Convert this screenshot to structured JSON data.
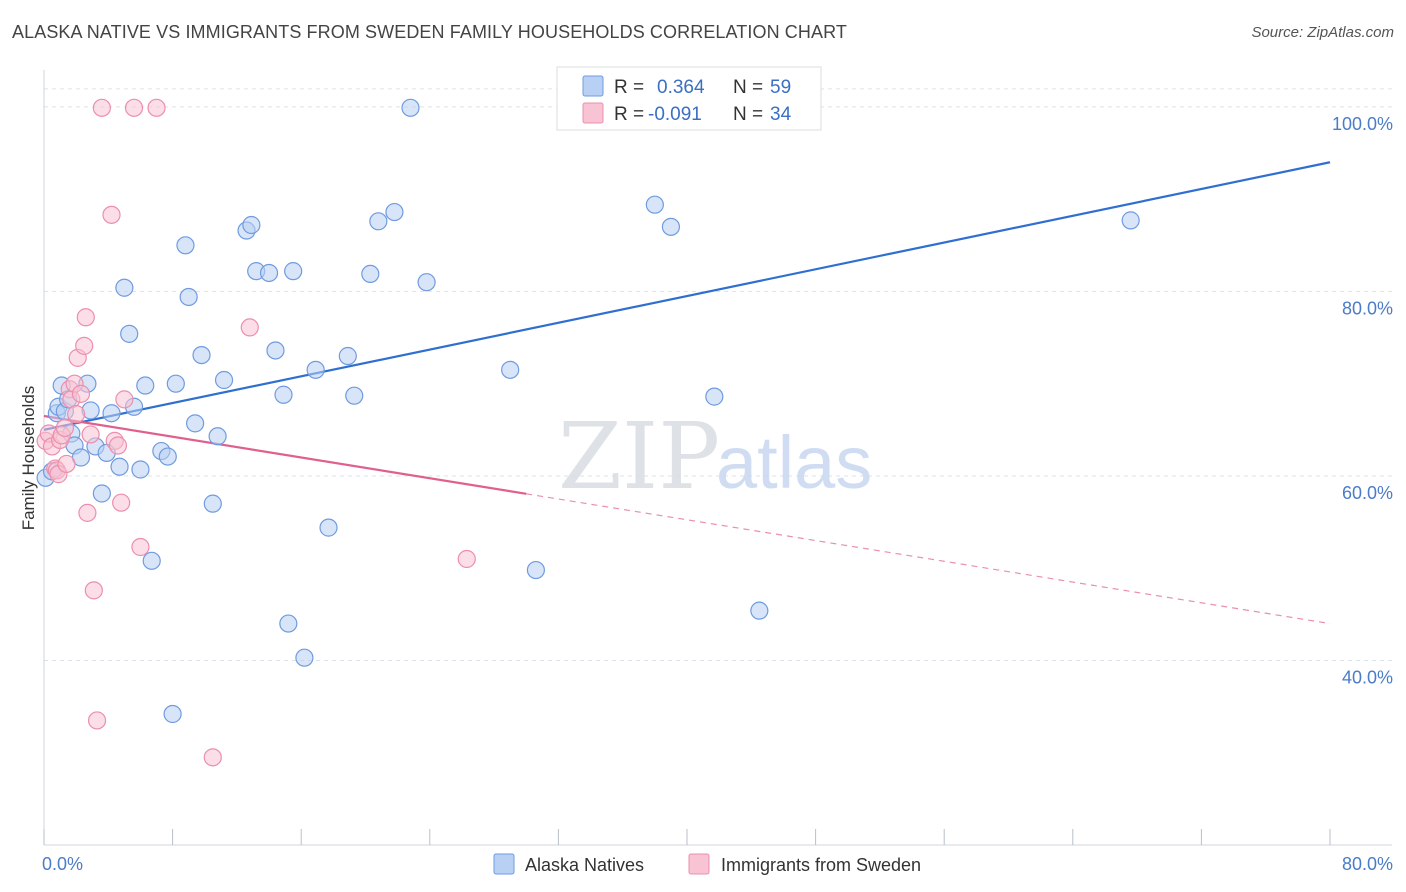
{
  "title": "ALASKA NATIVE VS IMMIGRANTS FROM SWEDEN FAMILY HOUSEHOLDS CORRELATION CHART",
  "source": "Source: ZipAtlas.com",
  "watermark": {
    "zip": "ZIP",
    "atlas": "atlas"
  },
  "colors": {
    "blue_fill": "#b8d0f3",
    "blue_stroke": "#6f9be0",
    "blue_line": "#2f6fd0",
    "pink_fill": "#f8c3d3",
    "pink_stroke": "#ec8fac",
    "pink_line": "#e0608d",
    "grid": "#dde3ea",
    "tick_text": "#4a7cc7"
  },
  "legend_box": {
    "rows": [
      {
        "r_label": "R =",
        "r_value": "0.364",
        "n_label": "N =",
        "n_value": "59"
      },
      {
        "r_label": "R =",
        "r_value": "-0.091",
        "n_label": "N =",
        "n_value": "34"
      }
    ]
  },
  "chart_data": {
    "type": "scatter",
    "title": "ALASKA NATIVE VS IMMIGRANTS FROM SWEDEN FAMILY HOUSEHOLDS CORRELATION CHART",
    "xlabel": "",
    "ylabel": "Family Households",
    "xlim": [
      0,
      80
    ],
    "ylim": [
      20,
      104
    ],
    "x_tick_labels": [
      "0.0%",
      "80.0%"
    ],
    "y_ticks": [
      40,
      60,
      80,
      100
    ],
    "y_tick_labels": [
      "40.0%",
      "60.0%",
      "80.0%",
      "100.0%"
    ],
    "grid": true,
    "legend_position": "bottom",
    "series": [
      {
        "name": "Alaska Natives",
        "r": 0.364,
        "n": 59,
        "trend": {
          "x": [
            0,
            80
          ],
          "y": [
            65.0,
            94.0
          ],
          "solid_to": 80
        },
        "points": [
          [
            0.1,
            59.8
          ],
          [
            0.5,
            60.5
          ],
          [
            0.8,
            66.8
          ],
          [
            0.9,
            67.5
          ],
          [
            1.1,
            69.8
          ],
          [
            1.3,
            67.0
          ],
          [
            1.5,
            68.3
          ],
          [
            1.7,
            64.6
          ],
          [
            1.9,
            63.3
          ],
          [
            2.3,
            62.0
          ],
          [
            2.7,
            70.0
          ],
          [
            2.9,
            67.1
          ],
          [
            3.2,
            63.2
          ],
          [
            3.6,
            58.1
          ],
          [
            3.9,
            62.5
          ],
          [
            4.2,
            66.8
          ],
          [
            4.7,
            61.0
          ],
          [
            5.0,
            80.4
          ],
          [
            5.3,
            75.4
          ],
          [
            5.6,
            67.5
          ],
          [
            6.0,
            60.7
          ],
          [
            6.3,
            69.8
          ],
          [
            6.7,
            50.8
          ],
          [
            7.3,
            62.7
          ],
          [
            7.7,
            62.1
          ],
          [
            8.0,
            34.2
          ],
          [
            8.2,
            70.0
          ],
          [
            8.8,
            85.0
          ],
          [
            9.0,
            79.4
          ],
          [
            9.4,
            65.7
          ],
          [
            9.8,
            73.1
          ],
          [
            10.5,
            57.0
          ],
          [
            10.8,
            64.3
          ],
          [
            11.2,
            70.4
          ],
          [
            12.6,
            86.6
          ],
          [
            12.9,
            87.2
          ],
          [
            13.2,
            82.2
          ],
          [
            14.0,
            82.0
          ],
          [
            14.4,
            73.6
          ],
          [
            14.9,
            68.8
          ],
          [
            15.2,
            44.0
          ],
          [
            15.5,
            82.2
          ],
          [
            16.2,
            40.3
          ],
          [
            16.9,
            71.5
          ],
          [
            17.7,
            54.4
          ],
          [
            18.9,
            73.0
          ],
          [
            19.3,
            68.7
          ],
          [
            20.3,
            81.9
          ],
          [
            20.8,
            87.6
          ],
          [
            21.8,
            88.6
          ],
          [
            22.8,
            99.9
          ],
          [
            23.8,
            81.0
          ],
          [
            29.0,
            71.5
          ],
          [
            30.6,
            49.8
          ],
          [
            38.0,
            89.4
          ],
          [
            39.0,
            87.0
          ],
          [
            41.7,
            68.6
          ],
          [
            44.5,
            45.4
          ],
          [
            67.6,
            87.7
          ]
        ]
      },
      {
        "name": "Immigrants from Sweden",
        "r": -0.091,
        "n": 34,
        "trend": {
          "x": [
            0,
            80
          ],
          "y": [
            66.5,
            44.0
          ],
          "solid_to": 30
        },
        "points": [
          [
            0.1,
            63.8
          ],
          [
            0.3,
            64.6
          ],
          [
            0.5,
            63.2
          ],
          [
            0.7,
            60.8
          ],
          [
            0.8,
            60.6
          ],
          [
            0.9,
            60.2
          ],
          [
            1.0,
            63.9
          ],
          [
            1.1,
            64.4
          ],
          [
            1.3,
            65.2
          ],
          [
            1.4,
            61.3
          ],
          [
            1.6,
            69.4
          ],
          [
            1.7,
            68.3
          ],
          [
            1.9,
            70.0
          ],
          [
            2.0,
            66.7
          ],
          [
            2.1,
            72.8
          ],
          [
            2.3,
            68.9
          ],
          [
            2.5,
            74.1
          ],
          [
            2.6,
            77.2
          ],
          [
            2.7,
            56.0
          ],
          [
            2.9,
            64.5
          ],
          [
            3.1,
            47.6
          ],
          [
            3.3,
            33.5
          ],
          [
            3.6,
            99.9
          ],
          [
            4.2,
            88.3
          ],
          [
            4.4,
            63.8
          ],
          [
            4.6,
            63.3
          ],
          [
            4.8,
            57.1
          ],
          [
            5.0,
            68.3
          ],
          [
            5.6,
            99.9
          ],
          [
            6.0,
            52.3
          ],
          [
            7.0,
            99.9
          ],
          [
            10.5,
            29.5
          ],
          [
            12.8,
            76.1
          ],
          [
            26.3,
            51.0
          ]
        ]
      }
    ]
  }
}
